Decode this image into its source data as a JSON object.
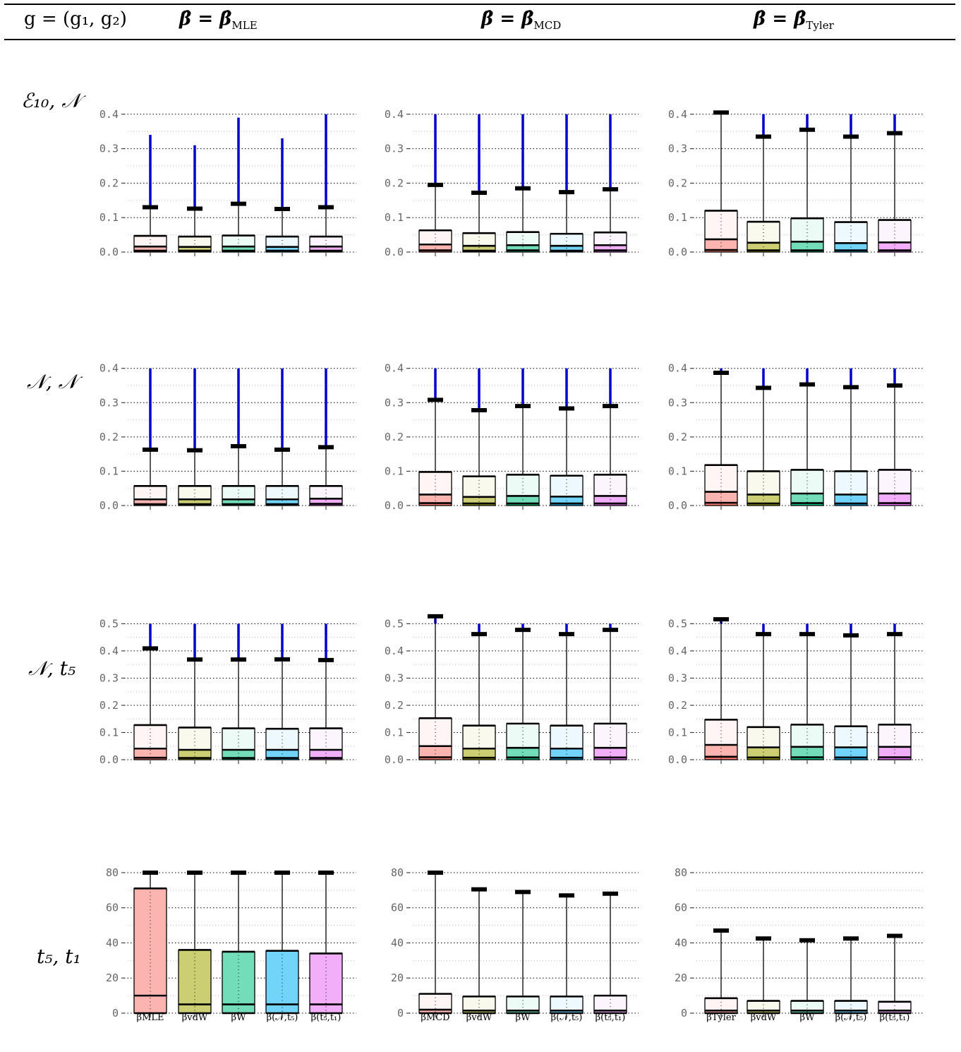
{
  "header": {
    "col0": "g = (g₁, g₂)",
    "col1_main": "β̂ = β̂",
    "col1_sub": "MLE",
    "col2_main": "β̂ = β̂",
    "col2_sub": "MCD",
    "col3_main": "β̂ = β̂",
    "col3_sub": "Tyler"
  },
  "rows": [
    {
      "label": "ℰ₁₀, 𝒩"
    },
    {
      "label": "𝒩, 𝒩"
    },
    {
      "label": "𝒩, t₅"
    },
    {
      "label": "t₅, t₁"
    }
  ],
  "xlabels": [
    [
      "β̂MLE",
      "βvdW",
      "βW",
      "β(𝒩,t₅)",
      "β(t₅,t₁)"
    ],
    [
      "β̂MCD",
      "βvdW",
      "βW",
      "β(𝒩,t₅)",
      "β(t₅,t₁)"
    ],
    [
      "β̂Tyler",
      "βvdW",
      "βW",
      "β(𝒩,t₅)",
      "β(t₅,t₁)"
    ]
  ],
  "colors": {
    "boxes": [
      "#f8766d",
      "#a3a500",
      "#00bf7d",
      "#00b0f6",
      "#e76bf3"
    ],
    "outliers": "#0000cc",
    "grid": "#000000"
  },
  "chart_data": [
    {
      "type": "box",
      "row": 0,
      "col": 0,
      "yticks": [
        "0.0",
        "0.1",
        "0.2",
        "0.3",
        "0.4"
      ],
      "ylim": [
        0,
        0.4
      ],
      "boxes": [
        [
          0.0,
          0.004,
          0.016,
          0.047,
          0.13,
          0.34
        ],
        [
          0.0,
          0.004,
          0.015,
          0.045,
          0.126,
          0.31
        ],
        [
          0.0,
          0.004,
          0.016,
          0.048,
          0.14,
          0.39
        ],
        [
          0.0,
          0.004,
          0.015,
          0.045,
          0.125,
          0.33
        ],
        [
          0.0,
          0.004,
          0.016,
          0.045,
          0.13,
          0.4
        ]
      ]
    },
    {
      "type": "box",
      "row": 0,
      "col": 1,
      "yticks": [
        "0.0",
        "0.1",
        "0.2",
        "0.3",
        "0.4"
      ],
      "ylim": [
        0,
        0.4
      ],
      "boxes": [
        [
          0.0,
          0.005,
          0.022,
          0.063,
          0.195,
          0.4
        ],
        [
          0.0,
          0.004,
          0.018,
          0.055,
          0.172,
          0.4
        ],
        [
          0.0,
          0.005,
          0.02,
          0.058,
          0.185,
          0.4
        ],
        [
          0.0,
          0.004,
          0.018,
          0.053,
          0.174,
          0.4
        ],
        [
          0.0,
          0.005,
          0.02,
          0.057,
          0.182,
          0.4
        ]
      ]
    },
    {
      "type": "box",
      "row": 0,
      "col": 2,
      "yticks": [
        "0.0",
        "0.1",
        "0.2",
        "0.3",
        "0.4"
      ],
      "ylim": [
        0,
        0.4
      ],
      "boxes": [
        [
          0.0,
          0.006,
          0.037,
          0.12,
          0.405,
          0.4
        ],
        [
          0.0,
          0.005,
          0.027,
          0.088,
          0.335,
          0.4
        ],
        [
          0.0,
          0.005,
          0.03,
          0.098,
          0.355,
          0.4
        ],
        [
          0.0,
          0.005,
          0.026,
          0.087,
          0.335,
          0.4
        ],
        [
          0.0,
          0.005,
          0.028,
          0.093,
          0.345,
          0.4
        ]
      ]
    },
    {
      "type": "box",
      "row": 1,
      "col": 0,
      "yticks": [
        "0.0",
        "0.1",
        "0.2",
        "0.3",
        "0.4"
      ],
      "ylim": [
        0,
        0.4
      ],
      "boxes": [
        [
          0.0,
          0.004,
          0.018,
          0.057,
          0.163,
          0.4
        ],
        [
          0.0,
          0.004,
          0.018,
          0.057,
          0.161,
          0.4
        ],
        [
          0.0,
          0.004,
          0.018,
          0.057,
          0.173,
          0.4
        ],
        [
          0.0,
          0.004,
          0.018,
          0.057,
          0.163,
          0.4
        ],
        [
          0.0,
          0.005,
          0.02,
          0.057,
          0.17,
          0.4
        ]
      ]
    },
    {
      "type": "box",
      "row": 1,
      "col": 1,
      "yticks": [
        "0.0",
        "0.1",
        "0.2",
        "0.3",
        "0.4"
      ],
      "ylim": [
        0,
        0.4
      ],
      "boxes": [
        [
          0.0,
          0.007,
          0.032,
          0.098,
          0.308,
          0.4
        ],
        [
          0.0,
          0.006,
          0.025,
          0.085,
          0.278,
          0.4
        ],
        [
          0.0,
          0.006,
          0.028,
          0.09,
          0.29,
          0.4
        ],
        [
          0.0,
          0.006,
          0.026,
          0.087,
          0.283,
          0.4
        ],
        [
          0.0,
          0.006,
          0.028,
          0.09,
          0.29,
          0.4
        ]
      ]
    },
    {
      "type": "box",
      "row": 1,
      "col": 2,
      "yticks": [
        "0.0",
        "0.1",
        "0.2",
        "0.3",
        "0.4"
      ],
      "ylim": [
        0,
        0.4
      ],
      "boxes": [
        [
          0.0,
          0.008,
          0.04,
          0.118,
          0.387,
          0.4
        ],
        [
          0.0,
          0.006,
          0.032,
          0.1,
          0.343,
          0.4
        ],
        [
          0.0,
          0.007,
          0.035,
          0.104,
          0.353,
          0.4
        ],
        [
          0.0,
          0.006,
          0.032,
          0.1,
          0.345,
          0.4
        ],
        [
          0.0,
          0.007,
          0.035,
          0.104,
          0.35,
          0.4
        ]
      ]
    },
    {
      "type": "box",
      "row": 2,
      "col": 0,
      "yticks": [
        "0.0",
        "0.1",
        "0.2",
        "0.3",
        "0.4",
        "0.5"
      ],
      "ylim": [
        0,
        0.55
      ],
      "boxes": [
        [
          0.0,
          0.008,
          0.045,
          0.14,
          0.45,
          0.55
        ],
        [
          0.0,
          0.007,
          0.04,
          0.13,
          0.405,
          0.55
        ],
        [
          0.0,
          0.007,
          0.04,
          0.127,
          0.405,
          0.55
        ],
        [
          0.0,
          0.007,
          0.04,
          0.125,
          0.406,
          0.55
        ],
        [
          0.0,
          0.007,
          0.04,
          0.127,
          0.403,
          0.55
        ]
      ]
    },
    {
      "type": "box",
      "row": 2,
      "col": 1,
      "yticks": [
        "0.0",
        "0.1",
        "0.2",
        "0.3",
        "0.4",
        "0.5"
      ],
      "ylim": [
        0,
        0.55
      ],
      "boxes": [
        [
          0.0,
          0.01,
          0.055,
          0.168,
          0.58,
          0.55
        ],
        [
          0.0,
          0.008,
          0.045,
          0.138,
          0.508,
          0.55
        ],
        [
          0.0,
          0.009,
          0.048,
          0.146,
          0.525,
          0.55
        ],
        [
          0.0,
          0.008,
          0.045,
          0.138,
          0.508,
          0.55
        ],
        [
          0.0,
          0.009,
          0.048,
          0.146,
          0.525,
          0.55
        ]
      ]
    },
    {
      "type": "box",
      "row": 2,
      "col": 2,
      "yticks": [
        "0.0",
        "0.1",
        "0.2",
        "0.3",
        "0.4",
        "0.5"
      ],
      "ylim": [
        0,
        0.55
      ],
      "boxes": [
        [
          0.0,
          0.012,
          0.06,
          0.162,
          0.568,
          0.55
        ],
        [
          0.0,
          0.009,
          0.05,
          0.132,
          0.508,
          0.55
        ],
        [
          0.0,
          0.01,
          0.052,
          0.142,
          0.508,
          0.55
        ],
        [
          0.0,
          0.009,
          0.05,
          0.135,
          0.503,
          0.55
        ],
        [
          0.0,
          0.01,
          0.052,
          0.142,
          0.508,
          0.55
        ]
      ]
    },
    {
      "type": "box",
      "row": 3,
      "col": 0,
      "yticks": [
        "0",
        "20",
        "40",
        "60",
        "80"
      ],
      "ylim": [
        0,
        80
      ],
      "boxes": [
        [
          0,
          0,
          10,
          71,
          80,
          null
        ],
        [
          0,
          0,
          5,
          36,
          80,
          null
        ],
        [
          0,
          0,
          5,
          35,
          80,
          null
        ],
        [
          0,
          0,
          5,
          35.5,
          80,
          null
        ],
        [
          0,
          0,
          5,
          34,
          80,
          null
        ]
      ]
    },
    {
      "type": "box",
      "row": 3,
      "col": 1,
      "yticks": [
        "0",
        "20",
        "40",
        "60",
        "80"
      ],
      "ylim": [
        0,
        80
      ],
      "boxes": [
        [
          0,
          0,
          2,
          11,
          80,
          null
        ],
        [
          0,
          0,
          1.5,
          9.5,
          70.5,
          null
        ],
        [
          0,
          0,
          1.5,
          9.5,
          69,
          null
        ],
        [
          0,
          0,
          1.5,
          9.5,
          67,
          null
        ],
        [
          0,
          0,
          1.5,
          10,
          68,
          null
        ]
      ]
    },
    {
      "type": "box",
      "row": 3,
      "col": 2,
      "yticks": [
        "0",
        "20",
        "40",
        "60",
        "80"
      ],
      "ylim": [
        0,
        80
      ],
      "boxes": [
        [
          0,
          0,
          1.5,
          8.5,
          47,
          null
        ],
        [
          0,
          0,
          1.5,
          7,
          42.5,
          null
        ],
        [
          0,
          0,
          1.5,
          7,
          41.5,
          null
        ],
        [
          0,
          0,
          1.5,
          7,
          42.5,
          null
        ],
        [
          0,
          0,
          1.5,
          6.5,
          44,
          null
        ]
      ]
    }
  ]
}
